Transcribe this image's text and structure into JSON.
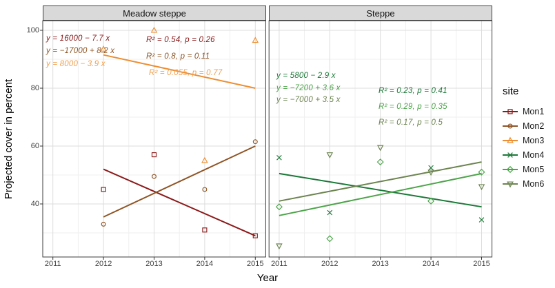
{
  "chart_data": {
    "type": "scatter",
    "xlabel": "Year",
    "ylabel": "Projected cover in percent",
    "x_ticks": [
      "2011",
      "2012",
      "2013",
      "2014",
      "2015"
    ],
    "y_ticks": [
      "100",
      "80",
      "60",
      "40"
    ],
    "y_tick_values": [
      100,
      80,
      60,
      40
    ],
    "y_minor_values": [
      90,
      70,
      50,
      30
    ],
    "x_tick_values": [
      2011,
      2012,
      2013,
      2014,
      2015
    ],
    "x_minor_values": [
      2011.5,
      2012.5,
      2013.5,
      2014.5
    ],
    "x_range": [
      2010.8,
      2015.2
    ],
    "y_range": [
      21.7,
      103.3
    ],
    "grid": true,
    "legend_title": "site",
    "legend_position": "right",
    "facets": [
      {
        "label": "Meadow steppe",
        "series": [
          {
            "name": "Mon1",
            "shape": "open-square",
            "color": "#8B1A1A",
            "points": [
              [
                2012,
                45
              ],
              [
                2013,
                57
              ],
              [
                2014,
                31
              ],
              [
                2015,
                29
              ]
            ],
            "trend": [
              [
                2012,
                52
              ],
              [
                2015,
                29
              ]
            ],
            "equation": "y = 16000 − 7.7 x",
            "stats": "R² = 0.54, p = 0.26"
          },
          {
            "name": "Mon2",
            "shape": "open-circle",
            "color": "#8F5424",
            "points": [
              [
                2012,
                33
              ],
              [
                2013,
                49.5
              ],
              [
                2014,
                45
              ],
              [
                2015,
                61.5
              ]
            ],
            "trend": [
              [
                2012,
                35.5
              ],
              [
                2015,
                60
              ]
            ],
            "equation": "y = −17000 + 8.2 x",
            "stats": "R² = 0.8, p = 0.11"
          },
          {
            "name": "Mon3",
            "shape": "open-triangle-up",
            "color": "#ED8E32",
            "points": [
              [
                2012,
                93.5
              ],
              [
                2013,
                100
              ],
              [
                2014,
                55
              ],
              [
                2015,
                96.5
              ]
            ],
            "trend": [
              [
                2012,
                91.5
              ],
              [
                2015,
                80
              ]
            ],
            "equation": "y = 8000 − 3.9 x",
            "stats": "R² = 0.055, p = 0.77"
          }
        ]
      },
      {
        "label": "Steppe",
        "series": [
          {
            "name": "Mon4",
            "shape": "cross",
            "color": "#1B7837",
            "points": [
              [
                2011,
                56
              ],
              [
                2012,
                37
              ],
              [
                2014,
                52.5
              ],
              [
                2015,
                34.5
              ]
            ],
            "trend": [
              [
                2011,
                50.5
              ],
              [
                2015,
                39
              ]
            ],
            "equation": "y = 5800 − 2.9 x",
            "stats": "R² = 0.23, p = 0.41"
          },
          {
            "name": "Mon5",
            "shape": "open-diamond",
            "color": "#4DA44A",
            "points": [
              [
                2011,
                39
              ],
              [
                2012,
                28
              ],
              [
                2013,
                54.5
              ],
              [
                2014,
                41
              ],
              [
                2015,
                51
              ]
            ],
            "trend": [
              [
                2011,
                36
              ],
              [
                2015,
                50.5
              ]
            ],
            "equation": "y = −7200 + 3.6 x",
            "stats": "R² = 0.29, p = 0.35"
          },
          {
            "name": "Mon6",
            "shape": "open-triangle-down",
            "color": "#6C8450",
            "points": [
              [
                2011,
                25.5
              ],
              [
                2012,
                57
              ],
              [
                2013,
                59.5
              ],
              [
                2014,
                51
              ],
              [
                2015,
                46
              ]
            ],
            "trend": [
              [
                2011,
                41
              ],
              [
                2015,
                54.5
              ]
            ],
            "equation": "y = −7000 + 3.5 x",
            "stats": "R² = 0.17, p = 0.5"
          }
        ]
      }
    ]
  }
}
